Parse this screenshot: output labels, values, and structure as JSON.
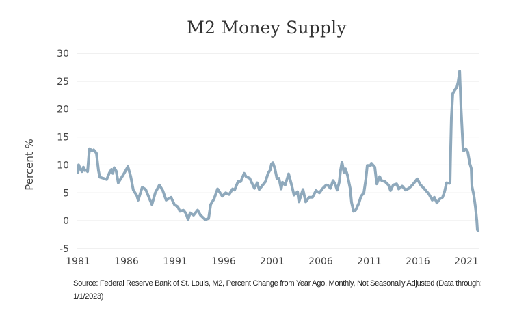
{
  "chart_data": {
    "type": "line",
    "title": "M2 Money Supply",
    "xlabel": "",
    "ylabel": "Percent %",
    "ylim": [
      -5,
      30
    ],
    "xlim": [
      1981,
      2022.3
    ],
    "yticks": [
      "30",
      "25",
      "20",
      "15",
      "10",
      "5",
      "0",
      "-5"
    ],
    "ytick_values": [
      30,
      25,
      20,
      15,
      10,
      5,
      0,
      -5
    ],
    "xticks": [
      "1981",
      "1986",
      "1991",
      "1996",
      "2001",
      "2006",
      "2011",
      "2016",
      "2021"
    ],
    "xtick_values": [
      1981,
      1986,
      1991,
      1996,
      2001,
      2006,
      2011,
      2016,
      2021
    ],
    "grid": "horizontal",
    "legend": "none",
    "series": [
      {
        "name": "M2 Percent Change from Year Ago",
        "color": "#8fa9bc",
        "x": [
          1981.0,
          1981.07,
          1981.21,
          1981.42,
          1981.56,
          1981.7,
          1981.85,
          1981.99,
          1982.13,
          1982.2,
          1982.48,
          1982.62,
          1982.9,
          1983.11,
          1983.25,
          1983.61,
          1983.96,
          1984.24,
          1984.45,
          1984.59,
          1984.73,
          1984.94,
          1985.15,
          1985.51,
          1985.79,
          1986.14,
          1986.42,
          1986.7,
          1987.06,
          1987.2,
          1987.62,
          1987.97,
          1988.61,
          1988.96,
          1989.38,
          1989.73,
          1990.08,
          1990.58,
          1990.93,
          1991.28,
          1991.49,
          1991.85,
          1992.13,
          1992.34,
          1992.55,
          1992.9,
          1993.32,
          1993.61,
          1994.1,
          1994.45,
          1994.66,
          1995.01,
          1995.37,
          1995.86,
          1996.21,
          1996.56,
          1996.92,
          1997.13,
          1997.48,
          1997.76,
          1998.11,
          1998.32,
          1998.68,
          1999.17,
          1999.45,
          1999.66,
          1999.94,
          2000.3,
          2000.58,
          2000.79,
          2000.93,
          2001.07,
          2001.28,
          2001.49,
          2001.7,
          2001.92,
          2002.06,
          2002.34,
          2002.69,
          2003.04,
          2003.25,
          2003.61,
          2003.75,
          2004.17,
          2004.45,
          2004.8,
          2005.15,
          2005.51,
          2005.86,
          2006.21,
          2006.56,
          2006.77,
          2006.99,
          2007.27,
          2007.48,
          2007.69,
          2007.9,
          2008.04,
          2008.18,
          2008.39,
          2008.54,
          2008.75,
          2009.03,
          2009.17,
          2009.38,
          2009.59,
          2009.94,
          2010.15,
          2010.44,
          2010.65,
          2010.79,
          2011.14,
          2011.21,
          2011.56,
          2011.77,
          2012.06,
          2012.27,
          2012.62,
          2012.97,
          2013.18,
          2013.46,
          2013.82,
          2014.03,
          2014.38,
          2014.73,
          2015.08,
          2015.44,
          2015.93,
          2016.28,
          2016.63,
          2017.13,
          2017.48,
          2017.69,
          2017.96,
          2018.25,
          2018.54,
          2018.75,
          2018.96,
          2019.24,
          2019.31,
          2019.38,
          2019.45,
          2019.59,
          2019.8,
          2020.01,
          2020.15,
          2020.3,
          2020.44,
          2020.65,
          2020.72,
          2020.93,
          2021.14,
          2021.35,
          2021.49,
          2021.56,
          2021.77,
          2021.92,
          2022.06,
          2022.13,
          2022.2
        ],
        "values": [
          8.6,
          10.0,
          9.4,
          8.8,
          9.6,
          9.0,
          9.1,
          8.8,
          11.8,
          12.9,
          12.5,
          12.7,
          12.1,
          9.0,
          7.8,
          7.6,
          7.4,
          8.6,
          9.2,
          8.5,
          9.5,
          8.9,
          6.8,
          7.8,
          8.6,
          9.7,
          8.0,
          5.5,
          4.5,
          3.7,
          6.0,
          5.6,
          2.9,
          5.0,
          6.4,
          5.4,
          3.7,
          4.2,
          2.9,
          2.5,
          1.7,
          1.9,
          1.3,
          0.2,
          1.4,
          1.0,
          1.9,
          1.0,
          0.2,
          0.4,
          2.9,
          3.9,
          5.7,
          4.4,
          5.0,
          4.7,
          5.7,
          5.5,
          7.0,
          7.0,
          8.5,
          7.9,
          7.6,
          5.8,
          6.8,
          5.6,
          6.2,
          7.0,
          8.5,
          9.1,
          10.2,
          10.4,
          9.3,
          7.5,
          7.6,
          5.7,
          6.9,
          6.4,
          8.4,
          6.1,
          4.6,
          5.2,
          3.4,
          5.6,
          3.4,
          4.2,
          4.2,
          5.4,
          5.0,
          5.8,
          6.4,
          6.3,
          5.8,
          7.2,
          6.6,
          5.5,
          6.9,
          9.1,
          10.5,
          8.7,
          9.3,
          8.2,
          5.8,
          3.3,
          1.7,
          1.9,
          3.2,
          4.4,
          5.0,
          7.5,
          9.9,
          9.9,
          10.3,
          9.6,
          6.6,
          7.9,
          7.2,
          7.0,
          6.4,
          5.4,
          6.4,
          6.6,
          5.7,
          6.2,
          5.5,
          5.8,
          6.4,
          7.5,
          6.4,
          5.8,
          4.8,
          3.7,
          4.2,
          3.2,
          3.9,
          4.2,
          5.2,
          6.8,
          6.7,
          6.8,
          13.1,
          18.4,
          22.8,
          23.4,
          23.9,
          24.9,
          26.8,
          20.4,
          13.1,
          12.5,
          12.9,
          12.3,
          10.2,
          9.4,
          6.2,
          4.5,
          2.5,
          0.1,
          -1.6,
          -1.8
        ]
      }
    ],
    "colors": {
      "line": "#8fa9bc",
      "grid": "#e2e2e2",
      "text": "#444444"
    }
  },
  "source_note": "Source: Federal Reserve Bank of St. Louis, M2, Percent Change from Year Ago, Monthly, Not Seasonally Adjusted (Data through: 1/1/2023)"
}
